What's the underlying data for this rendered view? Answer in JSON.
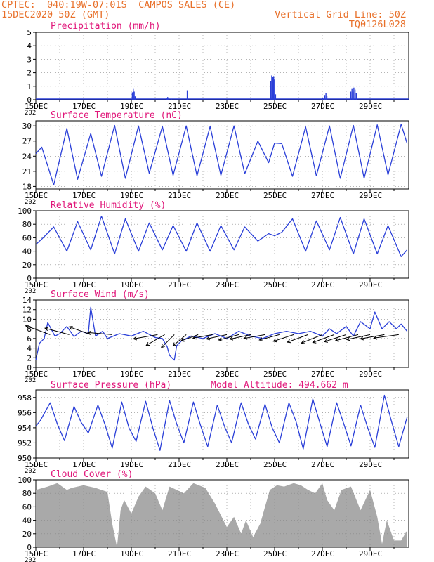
{
  "header": {
    "line1": "CPTEC:  040:19W-07:01S  CAMPOS SALES (CE)",
    "line2": "15DEC2020 50Z (GMT)",
    "grid_note": "Vertical Grid Line: 50Z",
    "code": "TQ0126L028"
  },
  "x_axis": {
    "ticks": [
      "15DEC",
      "17DEC",
      "19DEC",
      "21DEC",
      "23DEC",
      "25DEC",
      "27DEC",
      "29DEC"
    ],
    "stub": "202"
  },
  "colors": {
    "header": "#e8702a",
    "title": "#e0177a",
    "line": "#2a3fd8",
    "cloud": "#a9a9a9",
    "axis": "#000000"
  },
  "panels": {
    "precip": {
      "title": "Precipitation  (mm/h)"
    },
    "temp": {
      "title": "Surface Temperature (nC)"
    },
    "rh": {
      "title": "Relative Humidity (%)"
    },
    "wind": {
      "title": "Surface Wind (m/s)"
    },
    "pres": {
      "title": "Surface Pressure (hPa)",
      "altitude": "Model Altitude: 494.662 m"
    },
    "cloud": {
      "title": "Cloud Cover (%)"
    }
  },
  "chart_data": [
    {
      "type": "bar",
      "title": "Precipitation  (mm/h)",
      "x_days": [
        4.02,
        4.06,
        4.1,
        4.14,
        5.45,
        5.5,
        5.55,
        5.65,
        6.32,
        9.82,
        9.86,
        9.9,
        9.94,
        9.98,
        10.02,
        12.0,
        12.08,
        12.13,
        12.17,
        13.17,
        13.22,
        13.26,
        13.3,
        13.35,
        13.4
      ],
      "values": [
        0.55,
        0.85,
        0.6,
        0.25,
        0.15,
        0.2,
        0.1,
        0.05,
        0.7,
        1.4,
        1.8,
        1.7,
        1.75,
        1.5,
        0.4,
        0.15,
        0.35,
        0.5,
        0.3,
        0.6,
        0.85,
        0.6,
        0.9,
        0.75,
        0.5
      ],
      "ylim": [
        0,
        5
      ],
      "yticks": [
        0,
        1,
        2,
        3,
        4,
        5
      ]
    },
    {
      "type": "line",
      "title": "Surface Temperature (nC)",
      "x_days": [
        0,
        0.25,
        0.75,
        1.3,
        1.75,
        2.3,
        2.75,
        3.3,
        3.75,
        4.3,
        4.75,
        5.3,
        5.75,
        6.3,
        6.75,
        7.3,
        7.75,
        8.3,
        8.75,
        9.3,
        9.75,
        10.0,
        10.3,
        10.75,
        11.3,
        11.75,
        12.3,
        12.75,
        13.3,
        13.75,
        14.3,
        14.75,
        15.3,
        15.55
      ],
      "values": [
        24.5,
        25.8,
        18.3,
        29.5,
        19.4,
        28.5,
        20.0,
        30.1,
        19.6,
        30.0,
        20.6,
        29.9,
        20.2,
        30.0,
        20.1,
        29.9,
        20.2,
        30.0,
        20.5,
        27.0,
        22.7,
        26.6,
        26.5,
        20.0,
        29.8,
        20.1,
        30.0,
        19.6,
        30.1,
        19.6,
        30.2,
        20.3,
        30.3,
        26.5
      ],
      "ylim": [
        17.5,
        31
      ],
      "yticks": [
        18,
        21,
        24,
        27,
        30
      ]
    },
    {
      "type": "line",
      "title": "Relative Humidity (%)",
      "x_days": [
        0,
        0.25,
        0.75,
        1.3,
        1.75,
        2.3,
        2.75,
        3.3,
        3.75,
        4.3,
        4.75,
        5.3,
        5.75,
        6.3,
        6.75,
        7.3,
        7.75,
        8.3,
        8.75,
        9.3,
        9.75,
        10.0,
        10.3,
        10.75,
        11.3,
        11.75,
        12.3,
        12.75,
        13.3,
        13.75,
        14.3,
        14.75,
        15.3,
        15.55
      ],
      "values": [
        50,
        58,
        76,
        40,
        84,
        42,
        92,
        36,
        88,
        40,
        82,
        42,
        78,
        40,
        82,
        40,
        78,
        42,
        76,
        55,
        66,
        63,
        68,
        88,
        40,
        85,
        42,
        90,
        36,
        88,
        36,
        78,
        32,
        42
      ],
      "ylim": [
        0,
        100
      ],
      "yticks": [
        0,
        20,
        40,
        60,
        80,
        100
      ]
    },
    {
      "type": "line",
      "title": "Surface Wind (m/s)",
      "x_days": [
        0,
        0.15,
        0.35,
        0.5,
        0.8,
        1.0,
        1.3,
        1.6,
        1.9,
        2.2,
        2.3,
        2.5,
        2.8,
        3.0,
        3.5,
        4.0,
        4.5,
        5.0,
        5.3,
        5.5,
        5.6,
        5.8,
        5.9,
        6.1,
        6.5,
        7.0,
        7.5,
        8.0,
        8.5,
        9.0,
        9.5,
        10.0,
        10.5,
        11.0,
        11.5,
        12.0,
        12.3,
        12.6,
        13.0,
        13.3,
        13.6,
        14.0,
        14.2,
        14.5,
        14.8,
        15.1,
        15.3,
        15.55
      ],
      "values": [
        1.5,
        5.0,
        6.0,
        9.3,
        6.5,
        7.0,
        8.5,
        6.4,
        7.5,
        7.0,
        12.5,
        6.5,
        7.5,
        6.0,
        7.0,
        6.5,
        7.5,
        6.2,
        6.0,
        4.3,
        2.5,
        1.5,
        4.5,
        5.5,
        6.5,
        6.0,
        7.0,
        6.0,
        7.5,
        6.5,
        6.0,
        7.0,
        7.5,
        7.0,
        7.5,
        6.5,
        8.0,
        7.0,
        8.5,
        6.5,
        9.5,
        8.0,
        11.5,
        8.0,
        9.5,
        8.0,
        9.0,
        7.5
      ],
      "arrow_days": [
        0.6,
        1.4,
        2.3,
        3.2,
        5.1,
        5.4,
        5.8,
        6.3,
        6.8,
        7.4,
        8.0,
        8.5,
        9.0,
        9.6,
        10.2,
        10.8,
        11.4,
        12.0,
        12.5,
        13.0,
        13.5,
        14.0,
        14.6,
        15.2
      ],
      "arrow_speeds": [
        7.5,
        7.2,
        6.5,
        7.0,
        7.0,
        6.0,
        5.0,
        4.7,
        5.0,
        5.5,
        5.8,
        5.8,
        6.0,
        6.0,
        5.8,
        6.0,
        6.2,
        6.4,
        6.5,
        6.5,
        6.7,
        6.8,
        7.0,
        7.2
      ],
      "arrow_dir_deg": [
        20,
        15,
        20,
        5,
        -10,
        -30,
        -45,
        -40,
        -20,
        -10,
        -12,
        -15,
        -12,
        -10,
        -15,
        -18,
        -20,
        -22,
        -20,
        -18,
        -15,
        -12,
        -10,
        -8
      ],
      "ylim": [
        0,
        14
      ],
      "yticks": [
        0,
        2,
        4,
        6,
        8,
        10,
        12,
        14
      ]
    },
    {
      "type": "line",
      "title": "Surface Pressure (hPa)",
      "x_days": [
        0,
        0.2,
        0.6,
        0.9,
        1.2,
        1.6,
        1.9,
        2.2,
        2.6,
        2.9,
        3.2,
        3.6,
        3.9,
        4.2,
        4.6,
        4.9,
        5.2,
        5.6,
        5.9,
        6.2,
        6.6,
        6.9,
        7.2,
        7.6,
        7.9,
        8.2,
        8.6,
        8.9,
        9.2,
        9.6,
        9.9,
        10.2,
        10.6,
        10.9,
        11.2,
        11.6,
        11.9,
        12.2,
        12.6,
        12.9,
        13.2,
        13.6,
        13.9,
        14.2,
        14.6,
        14.9,
        15.2,
        15.55
      ],
      "values": [
        954.2,
        955.0,
        957.3,
        954.5,
        952.3,
        956.8,
        954.7,
        953.3,
        957.0,
        954.4,
        951.3,
        957.4,
        954.0,
        952.2,
        957.5,
        954.0,
        951.0,
        957.6,
        954.5,
        952.0,
        957.4,
        954.3,
        951.5,
        957.0,
        954.2,
        952.0,
        957.3,
        954.5,
        952.5,
        957.1,
        954.0,
        952.0,
        957.3,
        954.8,
        951.2,
        957.8,
        954.6,
        951.5,
        957.3,
        954.5,
        951.6,
        957.0,
        954.0,
        951.4,
        958.3,
        954.8,
        951.5,
        955.4
      ],
      "ylim": [
        950,
        959
      ],
      "yticks": [
        950,
        952,
        954,
        956,
        958
      ]
    },
    {
      "type": "area",
      "title": "Cloud Cover (%)",
      "x_days": [
        0,
        0.5,
        0.9,
        1.3,
        1.5,
        2.0,
        2.5,
        3.0,
        3.2,
        3.4,
        3.55,
        3.7,
        4.0,
        4.3,
        4.6,
        5.0,
        5.3,
        5.6,
        5.9,
        6.2,
        6.6,
        7.1,
        7.5,
        8.0,
        8.3,
        8.6,
        8.8,
        9.1,
        9.4,
        9.8,
        10.1,
        10.4,
        10.8,
        11.1,
        11.4,
        11.7,
        12.0,
        12.2,
        12.5,
        12.8,
        13.2,
        13.6,
        14.0,
        14.3,
        14.5,
        14.7,
        15.0,
        15.3,
        15.55
      ],
      "values": [
        85,
        90,
        95,
        85,
        88,
        92,
        88,
        82,
        35,
        0,
        55,
        70,
        50,
        75,
        90,
        80,
        55,
        90,
        85,
        80,
        95,
        88,
        65,
        30,
        45,
        20,
        40,
        15,
        35,
        85,
        92,
        90,
        95,
        92,
        85,
        80,
        95,
        70,
        55,
        85,
        90,
        55,
        85,
        45,
        5,
        40,
        10,
        10,
        25
      ],
      "ylim": [
        0,
        100
      ],
      "yticks": [
        0,
        20,
        40,
        60,
        80,
        100
      ]
    }
  ]
}
